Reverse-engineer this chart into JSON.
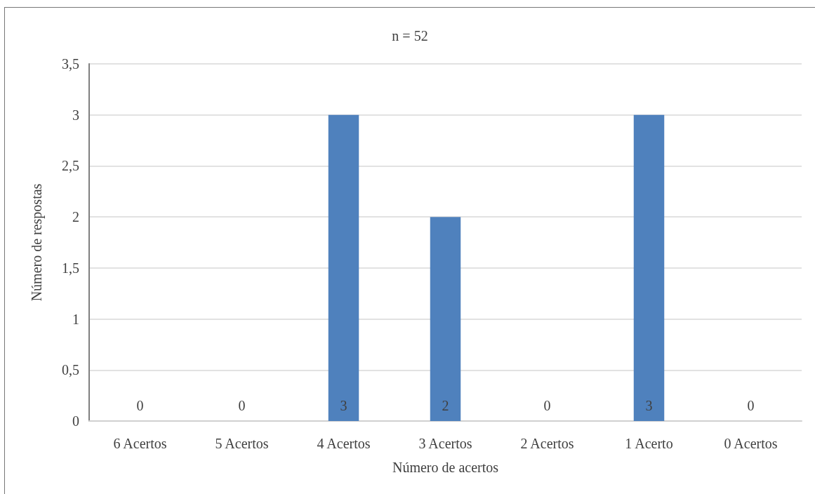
{
  "chart_data": {
    "type": "bar",
    "title": "n = 52",
    "xlabel": "Número de acertos",
    "ylabel": "Número de respostas",
    "categories": [
      "6 Acertos",
      "5 Acertos",
      "4 Acertos",
      "3 Acertos",
      "2 Acertos",
      "1 Acerto",
      "0 Acertos"
    ],
    "values": [
      0,
      0,
      3,
      2,
      0,
      3,
      0
    ],
    "color": "#4f81bd",
    "ylim": [
      0,
      3.5
    ],
    "yticks": [
      0,
      {
        "value": 0.5,
        "label": "0,5"
      },
      1,
      {
        "value": 1.5,
        "label": "1,5"
      },
      2,
      {
        "value": 2.5,
        "label": "2,5"
      },
      3,
      {
        "value": 3.5,
        "label": "3,5"
      }
    ],
    "grid": "y",
    "data_labels": true
  }
}
